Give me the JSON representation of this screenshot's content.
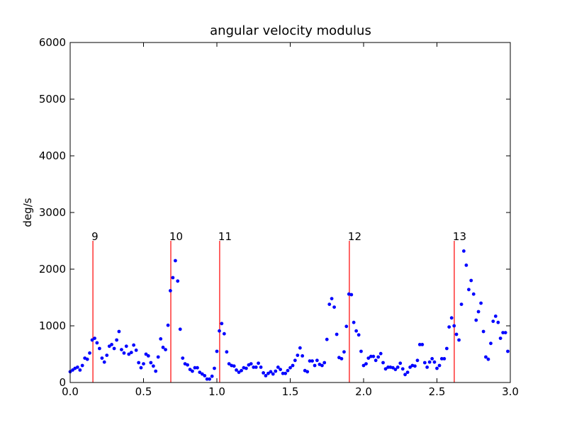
{
  "chart_data": {
    "type": "scatter",
    "title": "angular velocity modulus",
    "y_label": "deg/s",
    "color": "#0000ff",
    "marker_color": "#ff0000",
    "xlim": [
      0,
      3
    ],
    "ylim": [
      0,
      6000
    ],
    "xticks": [
      {
        "value": 0,
        "label": "0.0"
      },
      0.5,
      {
        "value": 1,
        "label": "1.0"
      },
      1.5,
      {
        "value": 2,
        "label": "2.0"
      },
      2.5,
      {
        "value": 3,
        "label": "3.0"
      }
    ],
    "yticks": [
      0,
      1000,
      2000,
      3000,
      4000,
      5000,
      6000
    ],
    "markers": [
      {
        "x": 0.155,
        "y": 2500,
        "label": "9"
      },
      {
        "x": 0.686,
        "y": 2500,
        "label": "10"
      },
      {
        "x": 1.019,
        "y": 2500,
        "label": "11"
      },
      {
        "x": 1.903,
        "y": 2500,
        "label": "12"
      },
      {
        "x": 2.618,
        "y": 2500,
        "label": "13"
      }
    ],
    "x": [
      0,
      0.017,
      0.033,
      0.05,
      0.067,
      0.083,
      0.1,
      0.117,
      0.133,
      0.15,
      0.167,
      0.183,
      0.2,
      0.217,
      0.233,
      0.25,
      0.267,
      0.283,
      0.3,
      0.317,
      0.333,
      0.35,
      0.367,
      0.383,
      0.4,
      0.417,
      0.433,
      0.45,
      0.467,
      0.483,
      0.5,
      0.517,
      0.533,
      0.55,
      0.567,
      0.583,
      0.6,
      0.617,
      0.633,
      0.65,
      0.667,
      0.683,
      0.7,
      0.717,
      0.733,
      0.75,
      0.767,
      0.783,
      0.8,
      0.817,
      0.833,
      0.85,
      0.867,
      0.883,
      0.9,
      0.917,
      0.933,
      0.95,
      0.967,
      0.983,
      1,
      1.017,
      1.033,
      1.05,
      1.067,
      1.083,
      1.1,
      1.117,
      1.133,
      1.15,
      1.167,
      1.183,
      1.2,
      1.217,
      1.233,
      1.25,
      1.267,
      1.283,
      1.3,
      1.317,
      1.333,
      1.35,
      1.367,
      1.383,
      1.4,
      1.417,
      1.433,
      1.45,
      1.467,
      1.483,
      1.5,
      1.517,
      1.533,
      1.55,
      1.567,
      1.583,
      1.6,
      1.617,
      1.633,
      1.65,
      1.667,
      1.683,
      1.7,
      1.717,
      1.733,
      1.75,
      1.767,
      1.783,
      1.8,
      1.817,
      1.833,
      1.85,
      1.867,
      1.883,
      1.9,
      1.917,
      1.933,
      1.95,
      1.967,
      1.983,
      2,
      2.017,
      2.033,
      2.05,
      2.067,
      2.083,
      2.1,
      2.117,
      2.133,
      2.15,
      2.167,
      2.183,
      2.2,
      2.217,
      2.233,
      2.25,
      2.267,
      2.283,
      2.3,
      2.317,
      2.333,
      2.35,
      2.367,
      2.383,
      2.4,
      2.417,
      2.433,
      2.45,
      2.467,
      2.483,
      2.5,
      2.517,
      2.533,
      2.55,
      2.567,
      2.583,
      2.6,
      2.617,
      2.633,
      2.65,
      2.667,
      2.683,
      2.7,
      2.717,
      2.733,
      2.75,
      2.767,
      2.783,
      2.8,
      2.817,
      2.833,
      2.85,
      2.867,
      2.883,
      2.9,
      2.917,
      2.933,
      2.95,
      2.967,
      2.983
    ],
    "values": [
      190,
      220,
      250,
      270,
      220,
      300,
      430,
      410,
      520,
      750,
      780,
      700,
      600,
      430,
      360,
      480,
      640,
      670,
      600,
      750,
      900,
      580,
      520,
      640,
      500,
      530,
      660,
      570,
      350,
      260,
      330,
      500,
      470,
      350,
      290,
      200,
      450,
      770,
      620,
      580,
      1010,
      1620,
      1850,
      2150,
      1790,
      940,
      430,
      330,
      310,
      230,
      200,
      260,
      260,
      180,
      150,
      120,
      60,
      60,
      110,
      250,
      550,
      910,
      1040,
      860,
      540,
      330,
      300,
      290,
      220,
      180,
      210,
      260,
      250,
      310,
      330,
      270,
      270,
      340,
      270,
      170,
      120,
      160,
      190,
      150,
      200,
      270,
      230,
      160,
      160,
      210,
      260,
      300,
      390,
      480,
      610,
      470,
      210,
      190,
      380,
      380,
      300,
      390,
      320,
      300,
      350,
      760,
      1380,
      1480,
      1330,
      850,
      440,
      420,
      540,
      990,
      1560,
      1550,
      1060,
      910,
      840,
      550,
      300,
      330,
      430,
      460,
      460,
      390,
      450,
      510,
      350,
      240,
      270,
      270,
      260,
      230,
      270,
      340,
      240,
      140,
      180,
      270,
      300,
      290,
      390,
      670,
      670,
      350,
      270,
      360,
      420,
      360,
      250,
      300,
      420,
      420,
      600,
      980,
      1140,
      1000,
      850,
      750,
      1380,
      2320,
      2070,
      1640,
      1800,
      1560,
      1100,
      1250,
      1400,
      900,
      450,
      410,
      690,
      1080,
      1170,
      1060,
      780,
      880,
      880,
      550
    ]
  }
}
